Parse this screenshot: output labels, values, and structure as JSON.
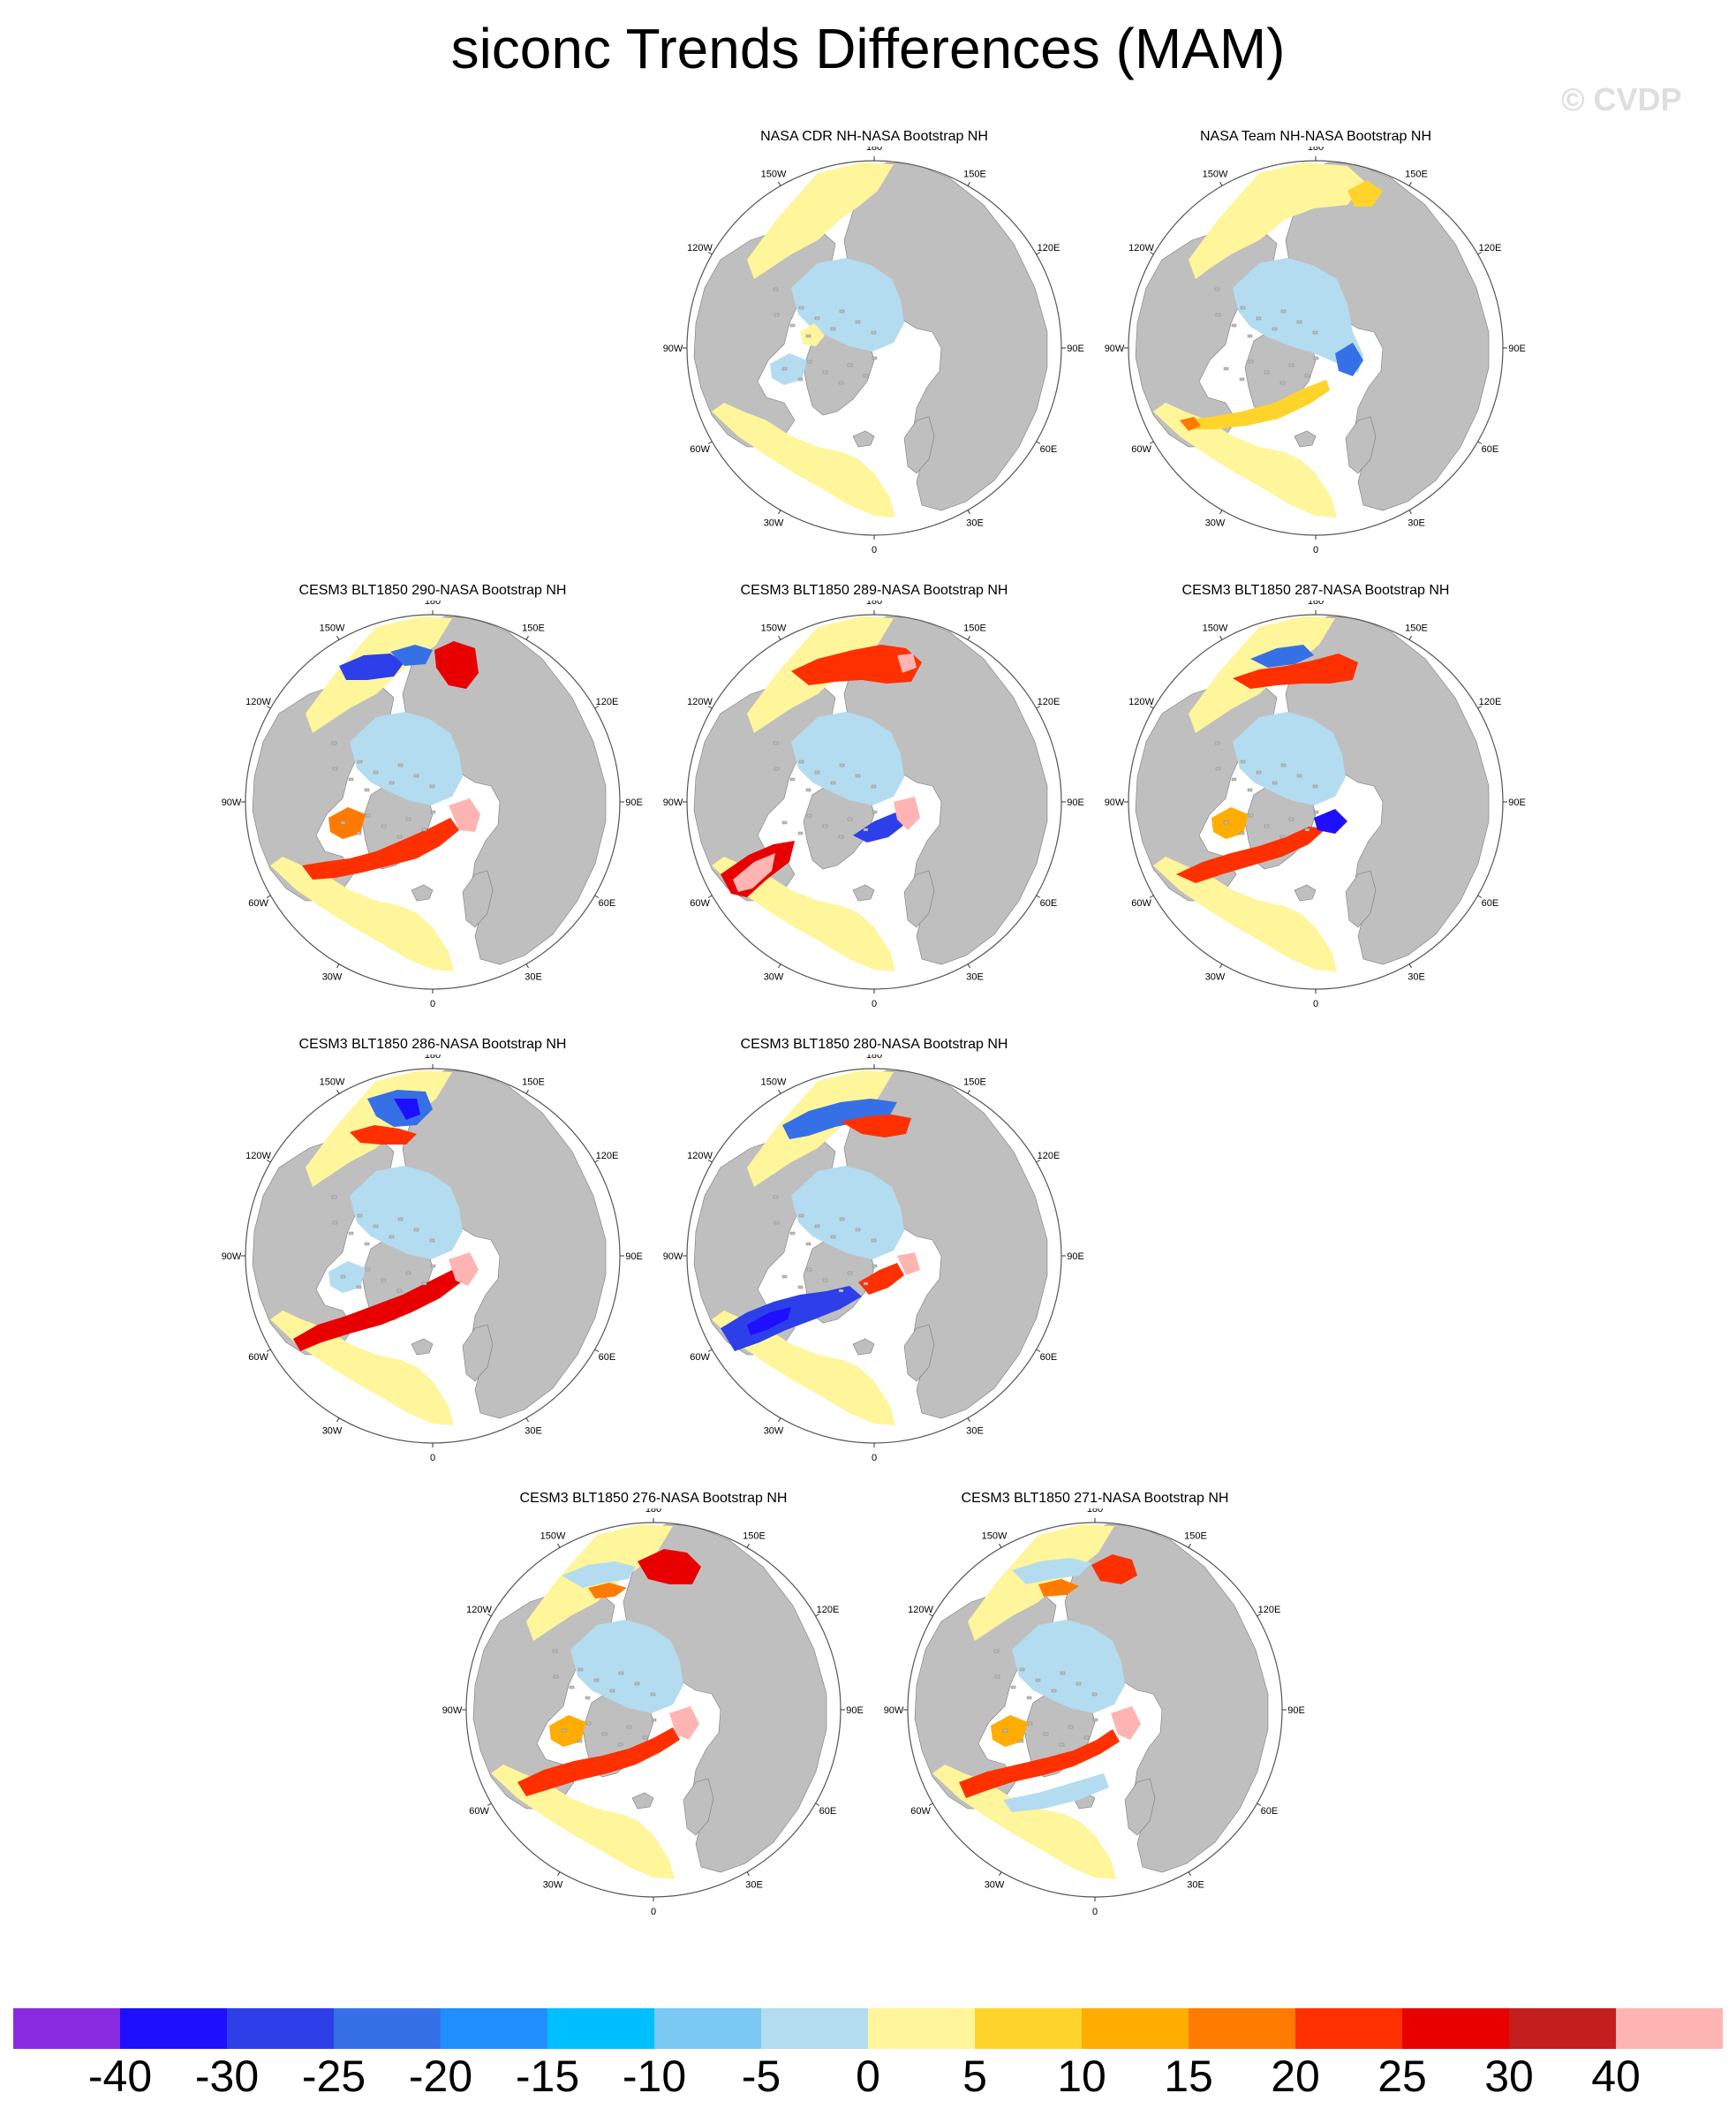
{
  "title": "siconc Trends Differences (MAM)",
  "watermark": "© CVDP",
  "panels": [
    {
      "title": "NASA CDR NH-NASA Bootstrap NH",
      "pattern": "obs_cdr"
    },
    {
      "title": "NASA Team NH-NASA Bootstrap NH",
      "pattern": "obs_team"
    },
    {
      "title": "CESM3 BLT1850 290-NASA Bootstrap NH",
      "pattern": "m290"
    },
    {
      "title": "CESM3 BLT1850 289-NASA Bootstrap NH",
      "pattern": "m289"
    },
    {
      "title": "CESM3 BLT1850 287-NASA Bootstrap NH",
      "pattern": "m287"
    },
    {
      "title": "CESM3 BLT1850 286-NASA Bootstrap NH",
      "pattern": "m286"
    },
    {
      "title": "CESM3 BLT1850 280-NASA Bootstrap NH",
      "pattern": "m280"
    },
    {
      "title": "CESM3 BLT1850 276-NASA Bootstrap NH",
      "pattern": "m276"
    },
    {
      "title": "CESM3 BLT1850 271-NASA Bootstrap NH",
      "pattern": "m271"
    }
  ],
  "map_labels": {
    "lon_180": "180",
    "lon_150W": "150W",
    "lon_150E": "150E",
    "lon_120W": "120W",
    "lon_120E": "120E",
    "lon_90W": "90W",
    "lon_90E": "90E",
    "lon_60W": "60W",
    "lon_60E": "60E",
    "lon_30W": "30W",
    "lon_30E": "30E",
    "lon_0": "0"
  },
  "colorbar": {
    "colors": [
      "#8a2be2",
      "#1e0fff",
      "#2c3fe8",
      "#3670e6",
      "#1f8fff",
      "#00bfff",
      "#79c9f2",
      "#b4dcf0",
      "#fff59a",
      "#ffd42a",
      "#ffad00",
      "#ff7b00",
      "#ff3000",
      "#e80000",
      "#c41e1e",
      "#ffb4b4"
    ],
    "labels": [
      "-40",
      "-30",
      "-25",
      "-20",
      "-15",
      "-10",
      "-5",
      "0",
      "5",
      "10",
      "15",
      "20",
      "25",
      "30",
      "40"
    ]
  },
  "colors": {
    "land": "#bfbfbf",
    "ocean": "#ffffff",
    "outline": "#555555"
  }
}
